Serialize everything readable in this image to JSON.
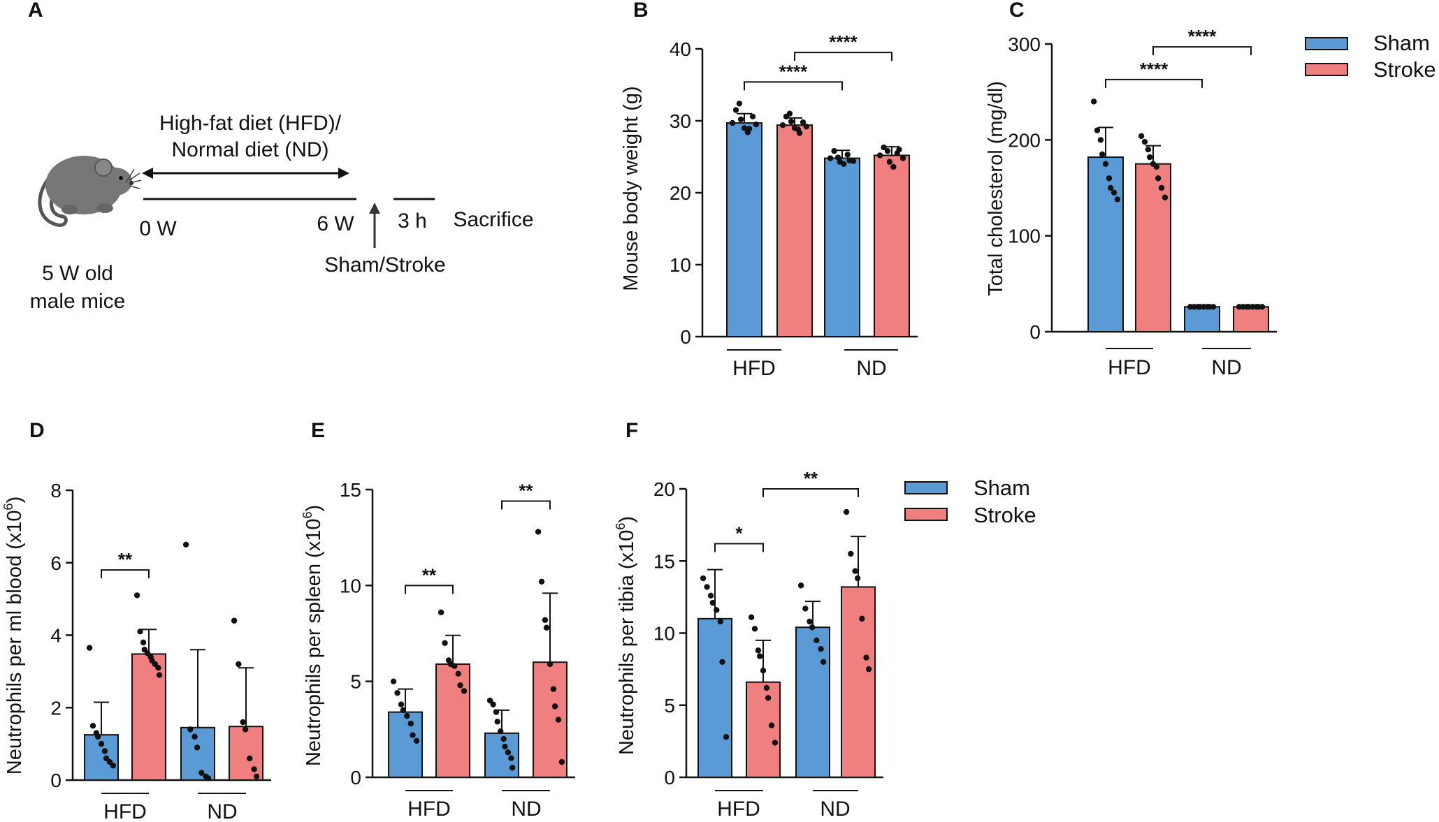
{
  "colors": {
    "sham": "#5b9bd5",
    "stroke": "#f08080",
    "axis": "#111111"
  },
  "legend": {
    "sham": "Sham",
    "stroke": "Stroke"
  },
  "schematic": {
    "label": "A",
    "diet_line1": "High-fat diet (HFD)/",
    "diet_line2": "Normal diet (ND)",
    "t0": "0 W",
    "t6": "6 W",
    "t3h": "3 h",
    "sacrifice": "Sacrifice",
    "procedure": "Sham/Stroke",
    "mice_line1": "5 W old",
    "mice_line2": "male mice",
    "mouse_icon": "mouse-icon",
    "arrow_icon": "double-arrow-icon"
  },
  "chart_data": [
    {
      "id": "B",
      "label": "B",
      "type": "bar",
      "ylabel": "Mouse body weight (g)",
      "ylim": [
        0,
        40
      ],
      "yticks": [
        0,
        10,
        20,
        30,
        40
      ],
      "groups": [
        "HFD",
        "ND"
      ],
      "series": [
        {
          "name": "Sham",
          "values": [
            29.7,
            24.8
          ],
          "err": [
            1.3,
            1.1
          ]
        },
        {
          "name": "Stroke",
          "values": [
            29.4,
            25.2
          ],
          "err": [
            1.0,
            1.2
          ]
        }
      ],
      "points": [
        [
          29.7,
          31.5,
          32.4,
          30.2,
          29.0,
          28.4,
          28.9,
          30.6,
          29.5
        ],
        [
          29.4,
          30.6,
          31.0,
          29.9,
          29.0,
          28.8,
          28.3,
          29.8,
          29.2
        ],
        [
          24.8,
          25.8,
          24.9,
          24.3,
          24.0,
          25.3,
          24.5,
          24.4
        ],
        [
          25.2,
          26.3,
          25.8,
          24.3,
          23.6,
          25.5,
          26.0,
          24.8
        ]
      ],
      "sig": [
        {
          "from": 0,
          "to": 2,
          "text": "****",
          "y": 35.4
        },
        {
          "from": 1,
          "to": 3,
          "text": "****",
          "y": 39.5
        }
      ]
    },
    {
      "id": "C",
      "label": "C",
      "type": "bar",
      "ylabel": "Total cholesterol (mg/dl)",
      "ylim": [
        0,
        300
      ],
      "yticks": [
        0,
        100,
        200,
        300
      ],
      "groups": [
        "HFD",
        "ND"
      ],
      "series": [
        {
          "name": "Sham",
          "values": [
            182,
            26
          ],
          "err": [
            31,
            0
          ]
        },
        {
          "name": "Stroke",
          "values": [
            175,
            26
          ],
          "err": [
            19,
            0
          ]
        }
      ],
      "points": [
        [
          240,
          210,
          200,
          185,
          175,
          160,
          150,
          145,
          138
        ],
        [
          204,
          198,
          190,
          182,
          175,
          172,
          160,
          150,
          140
        ],
        [
          26,
          26,
          26,
          26,
          26,
          26,
          26,
          26
        ],
        [
          26,
          26,
          26,
          26,
          26,
          26,
          26,
          26
        ]
      ],
      "sig": [
        {
          "from": 0,
          "to": 2,
          "text": "****",
          "y": 263
        },
        {
          "from": 1,
          "to": 3,
          "text": "****",
          "y": 297
        }
      ]
    },
    {
      "id": "D",
      "label": "D",
      "type": "bar",
      "ylabel": "Neutrophils per ml blood (x10",
      "ylabel_sup": "6",
      "ylabel_end": ")",
      "ylim": [
        0,
        8
      ],
      "yticks": [
        0,
        2,
        4,
        6,
        8
      ],
      "groups": [
        "HFD",
        "ND"
      ],
      "series": [
        {
          "name": "Sham",
          "values": [
            1.25,
            1.45
          ],
          "err": [
            0.9,
            2.15
          ]
        },
        {
          "name": "Stroke",
          "values": [
            3.48,
            1.48
          ],
          "err": [
            0.68,
            1.62
          ]
        }
      ],
      "points": [
        [
          3.65,
          1.5,
          1.3,
          1.2,
          1.0,
          0.8,
          0.6,
          0.5,
          0.4
        ],
        [
          5.1,
          4.1,
          3.8,
          3.6,
          3.5,
          3.4,
          3.3,
          3.2,
          3.1,
          2.9
        ],
        [
          6.5,
          1.4,
          1.2,
          0.9,
          0.2,
          0.1,
          0.05
        ],
        [
          4.4,
          3.2,
          1.6,
          1.4,
          0.6,
          0.3,
          0.1
        ]
      ],
      "sig": [
        {
          "from": 0,
          "to": 1,
          "text": "**",
          "y": 5.8
        }
      ]
    },
    {
      "id": "E",
      "label": "E",
      "type": "bar",
      "ylabel": "Neutrophils per spleen (x10",
      "ylabel_sup": "6",
      "ylabel_end": ")",
      "ylim": [
        0,
        15
      ],
      "yticks": [
        0,
        5,
        10,
        15
      ],
      "groups": [
        "HFD",
        "ND"
      ],
      "series": [
        {
          "name": "Sham",
          "values": [
            3.4,
            2.3
          ],
          "err": [
            1.2,
            1.2
          ]
        },
        {
          "name": "Stroke",
          "values": [
            5.9,
            6.0
          ],
          "err": [
            1.5,
            3.6
          ]
        }
      ],
      "points": [
        [
          5.0,
          4.4,
          3.8,
          3.5,
          3.2,
          2.8,
          2.2,
          1.9
        ],
        [
          8.6,
          7.0,
          6.1,
          5.9,
          5.8,
          5.4,
          4.8,
          4.5
        ],
        [
          4.0,
          3.8,
          3.4,
          2.9,
          2.4,
          2.0,
          1.6,
          1.3,
          1.0,
          0.5
        ],
        [
          12.8,
          10.2,
          8.2,
          7.8,
          5.9,
          4.6,
          3.7,
          3.0,
          0.8
        ]
      ],
      "sig": [
        {
          "from": 0,
          "to": 1,
          "text": "**",
          "y": 10.0
        },
        {
          "from": 2,
          "to": 3,
          "text": "**",
          "y": 14.4
        }
      ]
    },
    {
      "id": "F",
      "label": "F",
      "type": "bar",
      "ylabel": "Neutrophils per tibia (x10",
      "ylabel_sup": "6",
      "ylabel_end": ")",
      "ylim": [
        0,
        20
      ],
      "yticks": [
        0,
        5,
        10,
        15,
        20
      ],
      "groups": [
        "HFD",
        "ND"
      ],
      "series": [
        {
          "name": "Sham",
          "values": [
            11.0,
            10.4
          ],
          "err": [
            3.4,
            1.8
          ]
        },
        {
          "name": "Stroke",
          "values": [
            6.6,
            13.2
          ],
          "err": [
            2.9,
            3.5
          ]
        }
      ],
      "points": [
        [
          13.8,
          13.2,
          12.6,
          12.1,
          11.6,
          10.8,
          8.0,
          2.8
        ],
        [
          11.1,
          10.3,
          8.8,
          8.4,
          7.4,
          6.2,
          5.5,
          3.6,
          2.4
        ],
        [
          13.3,
          11.7,
          10.8,
          10.4,
          9.5,
          8.9,
          8.0
        ],
        [
          18.4,
          15.5,
          14.3,
          13.8,
          11.0,
          8.3,
          7.5
        ]
      ],
      "sig": [
        {
          "from": 0,
          "to": 1,
          "text": "*",
          "y": 16.2
        },
        {
          "from": 1,
          "to": 3,
          "text": "**",
          "y": 20.0
        }
      ]
    }
  ]
}
